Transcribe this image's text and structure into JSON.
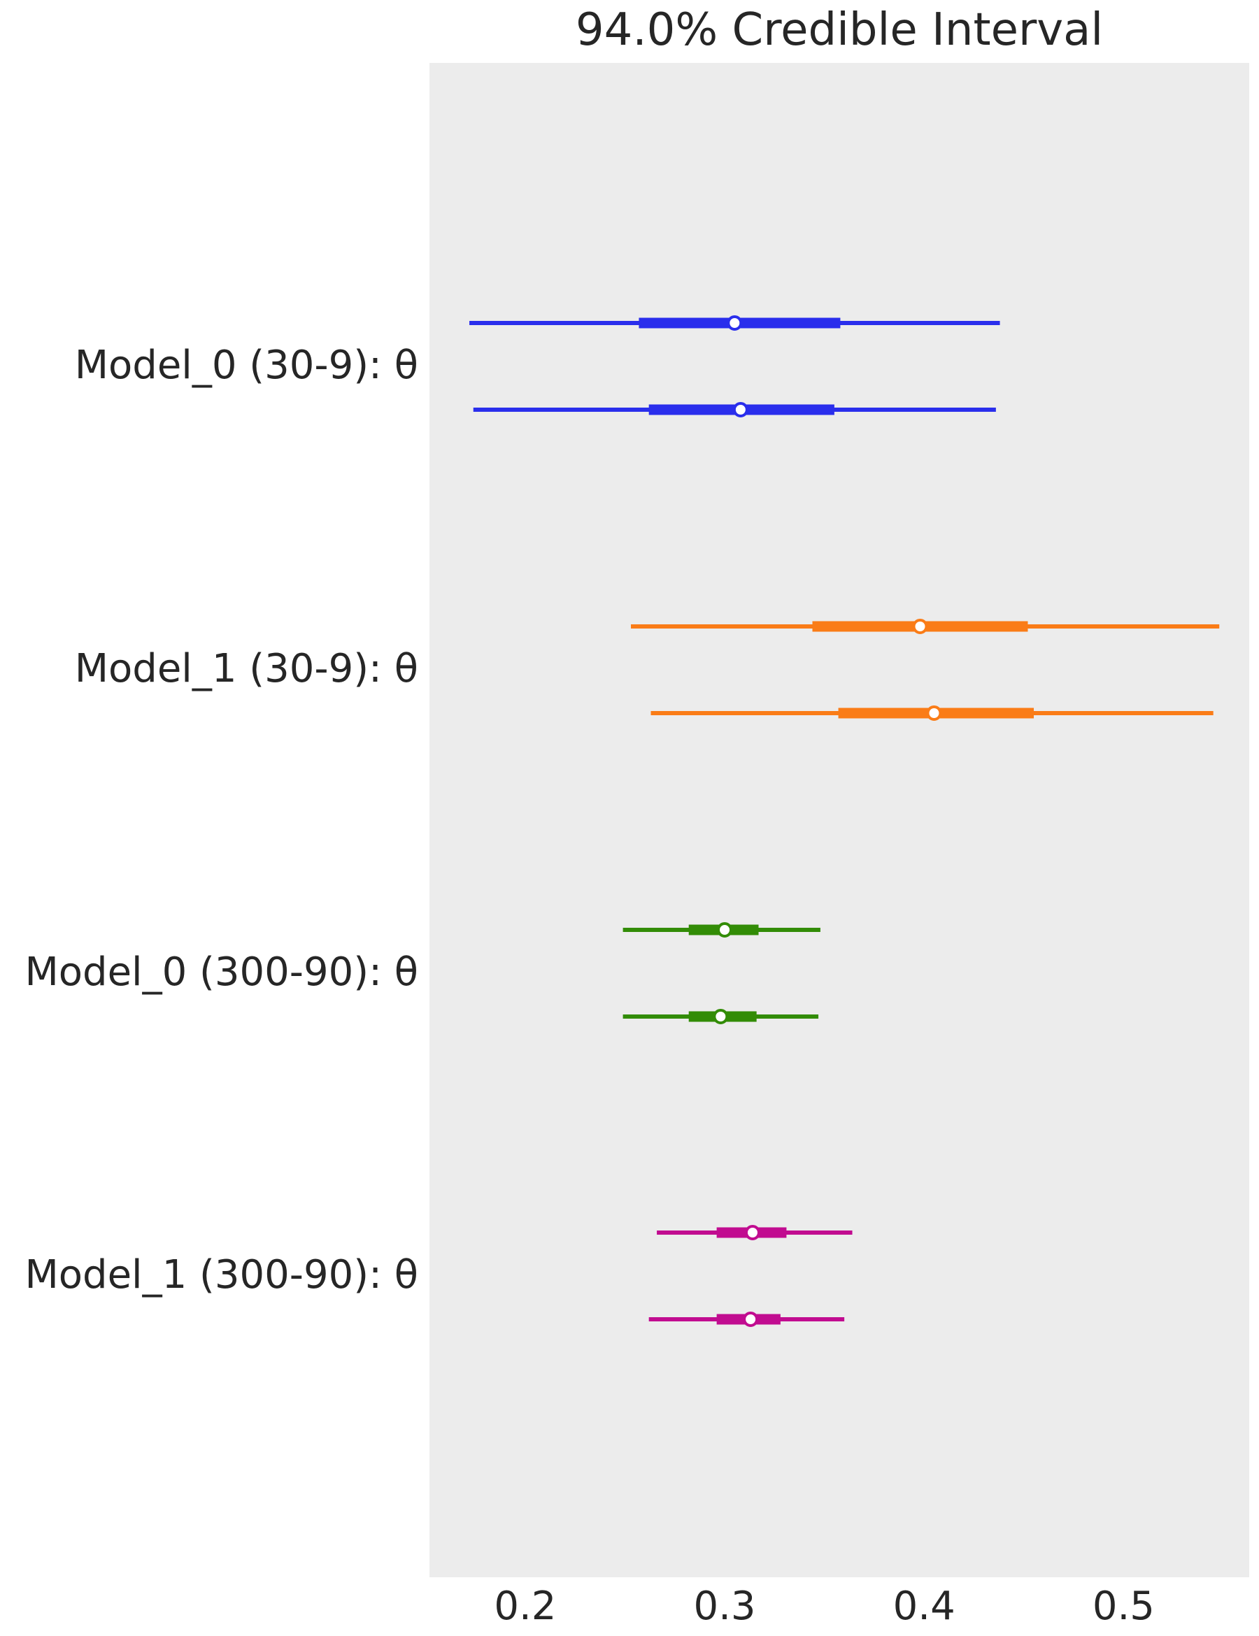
{
  "chart_data": {
    "type": "forest",
    "title": "94.0% Credible Interval",
    "xlabel": "",
    "ylabel": "",
    "xlim": [
      0.152,
      0.563
    ],
    "xticks": [
      0.2,
      0.3,
      0.4,
      0.5
    ],
    "xtick_labels": [
      "0.2",
      "0.3",
      "0.4",
      "0.5"
    ],
    "grid": false,
    "background": "#ececec",
    "groups": [
      {
        "label": "Model_0 (30-9): θ",
        "color": "#2a2eec",
        "chains": [
          {
            "hdi_low": 0.172,
            "hdi_high": 0.438,
            "iqr_low": 0.257,
            "iqr_high": 0.358,
            "median": 0.305
          },
          {
            "hdi_low": 0.174,
            "hdi_high": 0.436,
            "iqr_low": 0.262,
            "iqr_high": 0.355,
            "median": 0.308
          }
        ]
      },
      {
        "label": "Model_1 (30-9): θ",
        "color": "#fa7c17",
        "chains": [
          {
            "hdi_low": 0.253,
            "hdi_high": 0.548,
            "iqr_low": 0.344,
            "iqr_high": 0.452,
            "median": 0.398
          },
          {
            "hdi_low": 0.263,
            "hdi_high": 0.545,
            "iqr_low": 0.357,
            "iqr_high": 0.455,
            "median": 0.405
          }
        ]
      },
      {
        "label": "Model_0 (300-90): θ",
        "color": "#328c06",
        "chains": [
          {
            "hdi_low": 0.249,
            "hdi_high": 0.348,
            "iqr_low": 0.282,
            "iqr_high": 0.317,
            "median": 0.3
          },
          {
            "hdi_low": 0.249,
            "hdi_high": 0.347,
            "iqr_low": 0.282,
            "iqr_high": 0.316,
            "median": 0.298
          }
        ]
      },
      {
        "label": "Model_1 (300-90): θ",
        "color": "#c10c90",
        "chains": [
          {
            "hdi_low": 0.266,
            "hdi_high": 0.364,
            "iqr_low": 0.296,
            "iqr_high": 0.331,
            "median": 0.314
          },
          {
            "hdi_low": 0.262,
            "hdi_high": 0.36,
            "iqr_low": 0.296,
            "iqr_high": 0.328,
            "median": 0.313
          }
        ]
      }
    ]
  }
}
